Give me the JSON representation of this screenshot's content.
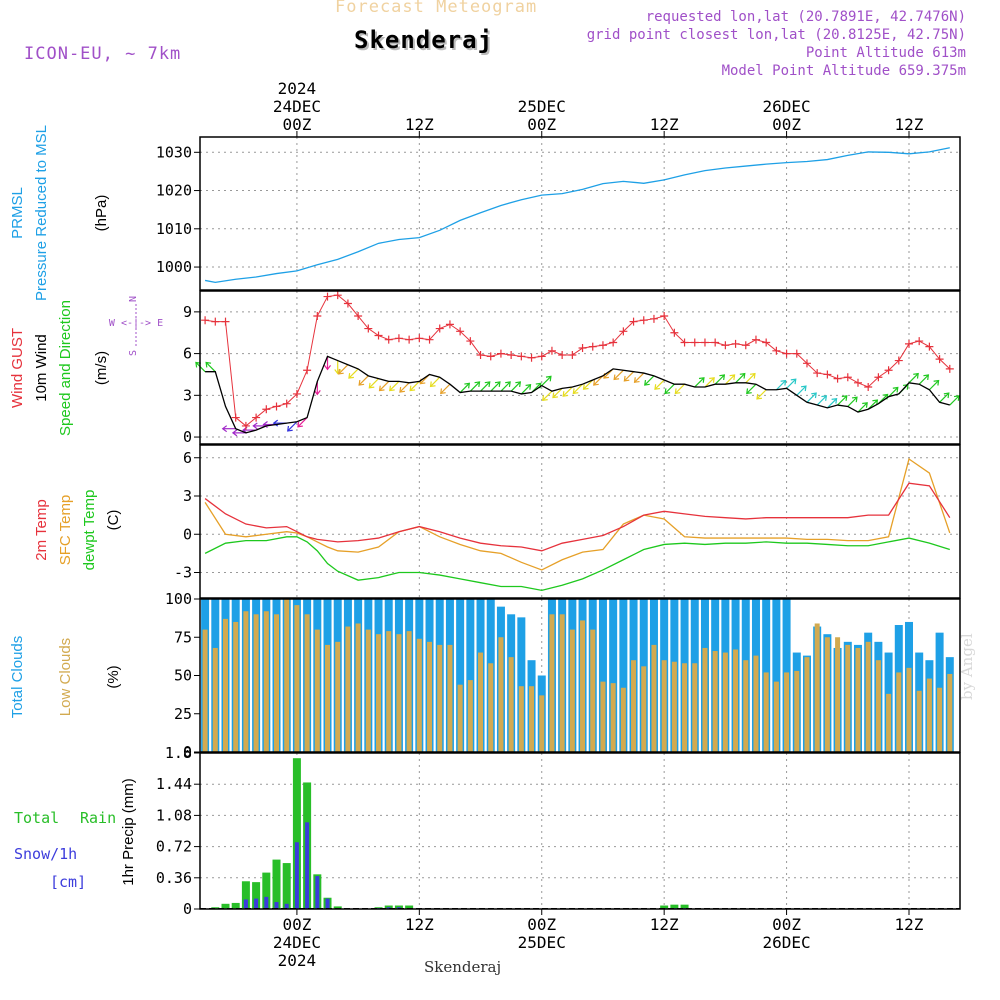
{
  "header": {
    "subtitle": "Forecast Meteogram",
    "station": "Skenderaj",
    "requested": "requested lon,lat (20.7891E, 42.7476N)",
    "grid_point": "grid point closest lon,lat (20.8125E, 42.75N)",
    "point_alt": "Point Altitude 613m",
    "model_alt": "Model Point Altitude 659.375m",
    "model": "ICON-EU, ~ 7km",
    "footer": "Skenderaj",
    "credit": "by Angel"
  },
  "time_axis": {
    "top_labels": [
      {
        "hour": 0,
        "lines": [
          "2024",
          "24DEC",
          "00Z"
        ]
      },
      {
        "hour": 12,
        "lines": [
          "12Z"
        ]
      },
      {
        "hour": 24,
        "lines": [
          "25DEC",
          "00Z"
        ]
      },
      {
        "hour": 36,
        "lines": [
          "12Z"
        ]
      },
      {
        "hour": 48,
        "lines": [
          "26DEC",
          "00Z"
        ]
      },
      {
        "hour": 60,
        "lines": [
          "12Z"
        ]
      }
    ],
    "bottom_labels": [
      {
        "hour": 0,
        "lines": [
          "00Z",
          "24DEC",
          "2024"
        ]
      },
      {
        "hour": 12,
        "lines": [
          "12Z"
        ]
      },
      {
        "hour": 24,
        "lines": [
          "00Z",
          "25DEC"
        ]
      },
      {
        "hour": 36,
        "lines": [
          "12Z"
        ]
      },
      {
        "hour": 48,
        "lines": [
          "00Z",
          "26DEC"
        ]
      },
      {
        "hour": 60,
        "lines": [
          "12Z"
        ]
      }
    ]
  },
  "panels": {
    "pressure": {
      "labels": [
        "PRMSL",
        "Pressure Reduced to MSL"
      ],
      "unit": "(hPa)",
      "yticks": [
        "1000",
        "1010",
        "1020",
        "1030"
      ]
    },
    "wind": {
      "labels": [
        "Wind GUST",
        "10m Wind",
        "Speed and Direction"
      ],
      "unit": "(m/s)",
      "yticks": [
        "0",
        "3",
        "6",
        "9"
      ],
      "compass": [
        "N",
        "W <-|-> E",
        "S"
      ]
    },
    "temp": {
      "labels": [
        "2m Temp",
        "SFC Temp",
        "dewpt Temp"
      ],
      "unit": "(C)",
      "yticks": [
        "-3",
        "0",
        "3",
        "6"
      ]
    },
    "clouds": {
      "labels": [
        "Total Clouds",
        "Low Clouds"
      ],
      "unit": "(%)",
      "yticks": [
        "0",
        "25",
        "50",
        "75",
        "100"
      ]
    },
    "precip": {
      "labels": [
        "Total",
        "Rain",
        "Snow/1h",
        "[cm]"
      ],
      "unit": "1hr Precip (mm)",
      "yticks": [
        "0",
        "0.36",
        "0.72",
        "1.08",
        "1.44",
        "1.8"
      ]
    }
  },
  "colors": {
    "pressure": "#1ea0e6",
    "gust": "#e6323c",
    "wind10m": "#000000",
    "t2m": "#e6323c",
    "tsfc": "#e6a028",
    "dewpt": "#1ec81e",
    "total_clouds": "#1ea0e6",
    "low_clouds": "#d2aa50",
    "rain": "#28be28",
    "snow": "#3c3cdc",
    "label_purple": "#a050c8"
  },
  "chart_data": {
    "type": "meteogram",
    "x_unit": "hours from 2024-12-24 00Z",
    "x_range": [
      -9.5,
      65
    ],
    "pressure": {
      "ylim": [
        994,
        1034
      ],
      "x": [
        -9,
        -8,
        -6,
        -4,
        -2,
        0,
        2,
        4,
        6,
        8,
        10,
        12,
        14,
        16,
        18,
        20,
        22,
        24,
        26,
        28,
        30,
        32,
        34,
        36,
        38,
        40,
        42,
        44,
        46,
        48,
        50,
        52,
        54,
        56,
        58,
        60,
        62,
        64
      ],
      "values": [
        996.5,
        996.0,
        996.8,
        997.4,
        998.3,
        999.0,
        1000.6,
        1002.0,
        1004.0,
        1006.2,
        1007.2,
        1007.7,
        1009.6,
        1012.2,
        1014.2,
        1016.1,
        1017.6,
        1018.8,
        1019.2,
        1020.3,
        1021.8,
        1022.4,
        1021.9,
        1022.8,
        1024.1,
        1025.2,
        1025.9,
        1026.4,
        1026.9,
        1027.3,
        1027.6,
        1028.1,
        1029.2,
        1030.1,
        1030.0,
        1029.6,
        1030.1,
        1031.2
      ]
    },
    "wind": {
      "ylim": [
        -0.5,
        10.5
      ],
      "gust_x": [
        -9,
        -8,
        -7,
        -6,
        -5,
        -4,
        -3,
        -2,
        -1,
        0,
        1,
        2,
        3,
        4,
        5,
        6,
        7,
        8,
        9,
        10,
        11,
        12,
        13,
        14,
        15,
        16,
        17,
        18,
        19,
        20,
        21,
        22,
        23,
        24,
        25,
        26,
        27,
        28,
        29,
        30,
        31,
        32,
        33,
        34,
        35,
        36,
        37,
        38,
        39,
        40,
        41,
        42,
        43,
        44,
        45,
        46,
        47,
        48,
        49,
        50,
        51,
        52,
        53,
        54,
        55,
        56,
        57,
        58,
        59,
        60,
        61,
        62,
        63,
        64
      ],
      "gust": [
        8.4,
        8.3,
        8.3,
        1.4,
        0.8,
        1.4,
        2.0,
        2.2,
        2.4,
        3.1,
        4.8,
        8.7,
        10.1,
        10.2,
        9.6,
        8.7,
        7.8,
        7.3,
        7.0,
        7.1,
        7.0,
        7.1,
        7.0,
        7.8,
        8.1,
        7.6,
        6.9,
        5.9,
        5.8,
        6.0,
        5.9,
        5.8,
        5.7,
        5.8,
        6.2,
        5.9,
        5.9,
        6.4,
        6.5,
        6.6,
        6.8,
        7.6,
        8.3,
        8.4,
        8.5,
        8.7,
        7.5,
        6.8,
        6.8,
        6.8,
        6.8,
        6.6,
        6.7,
        6.6,
        7.0,
        6.8,
        6.2,
        6.0,
        6.0,
        5.3,
        4.6,
        4.5,
        4.2,
        4.3,
        3.9,
        3.6,
        4.3,
        4.8,
        5.5,
        6.7,
        6.9,
        6.5,
        5.6,
        4.9
      ],
      "speed_x": [
        -9,
        -8,
        -7,
        -6,
        -5,
        -4,
        -3,
        -2,
        -1,
        0,
        1,
        2,
        3,
        4,
        5,
        6,
        7,
        8,
        9,
        10,
        11,
        12,
        13,
        14,
        15,
        16,
        17,
        18,
        19,
        20,
        21,
        22,
        23,
        24,
        25,
        26,
        27,
        28,
        29,
        30,
        31,
        32,
        33,
        34,
        35,
        36,
        37,
        38,
        39,
        40,
        41,
        42,
        43,
        44,
        45,
        46,
        47,
        48,
        49,
        50,
        51,
        52,
        53,
        54,
        55,
        56,
        57,
        58,
        59,
        60,
        61,
        62,
        63,
        64
      ],
      "speed": [
        4.7,
        4.7,
        2.2,
        0.6,
        0.3,
        0.5,
        0.8,
        0.9,
        1.0,
        1.1,
        1.4,
        4.0,
        5.8,
        5.5,
        5.2,
        4.9,
        4.4,
        4.2,
        4.0,
        4.0,
        3.9,
        4.0,
        4.5,
        4.3,
        3.8,
        3.2,
        3.3,
        3.3,
        3.3,
        3.3,
        3.3,
        3.1,
        3.2,
        3.7,
        3.3,
        3.5,
        3.6,
        3.8,
        4.1,
        4.4,
        4.9,
        4.8,
        4.7,
        4.6,
        4.4,
        4.1,
        3.8,
        3.8,
        3.6,
        3.6,
        3.8,
        3.8,
        3.9,
        3.9,
        3.8,
        3.4,
        3.4,
        3.5,
        3.0,
        2.5,
        2.3,
        2.1,
        2.3,
        2.2,
        1.8,
        2.0,
        2.4,
        2.9,
        3.1,
        3.9,
        3.8,
        3.4,
        2.5,
        2.3
      ],
      "barbs_x": [
        -9,
        -8,
        -6,
        -5,
        -4,
        -3,
        -2,
        -1,
        0,
        1,
        2,
        3,
        4,
        5,
        6,
        7,
        8,
        9,
        10,
        11,
        12,
        13,
        14,
        15,
        16,
        17,
        18,
        19,
        20,
        21,
        22,
        23,
        24,
        25,
        26,
        27,
        28,
        29,
        30,
        31,
        32,
        33,
        34,
        35,
        36,
        37,
        38,
        39,
        40,
        41,
        42,
        43,
        44,
        45,
        46,
        47,
        48,
        49,
        50,
        51,
        52,
        53,
        54,
        55,
        56,
        57,
        58,
        59,
        60,
        61,
        62,
        63,
        64
      ],
      "barbs_dir": [
        "NW",
        "NW",
        "W",
        "W",
        "W",
        "W",
        "W",
        "W",
        "SW",
        "SW",
        "S",
        "S",
        "S",
        "SW",
        "SW",
        "SW",
        "SW",
        "SW",
        "SW",
        "SW",
        "SW",
        "SW",
        "SW",
        "SW",
        "NE",
        "NE",
        "NE",
        "NE",
        "NE",
        "NE",
        "NE",
        "NE",
        "NE",
        "SW",
        "SW",
        "SW",
        "SW",
        "SW",
        "SW",
        "SW",
        "SW",
        "SW",
        "SW",
        "SW",
        "SW",
        "SW",
        "SW",
        "NE",
        "NE",
        "NE",
        "NE",
        "NE",
        "NE",
        "SW",
        "SW",
        "NE",
        "NE",
        "NE",
        "NE",
        "NE",
        "NE",
        "NE",
        "NE",
        "NE",
        "NE",
        "NE",
        "NE",
        "NE",
        "NE",
        "NE",
        "NE",
        "NE",
        "NE"
      ]
    },
    "temperature": {
      "ylim": [
        -5,
        7
      ],
      "x": [
        -9,
        -7,
        -5,
        -3,
        -1,
        0,
        1,
        2,
        3,
        4,
        6,
        8,
        10,
        12,
        14,
        16,
        18,
        20,
        22,
        24,
        26,
        28,
        30,
        32,
        34,
        36,
        38,
        40,
        42,
        44,
        46,
        48,
        50,
        52,
        54,
        56,
        58,
        60,
        62,
        64
      ],
      "t2m": [
        2.8,
        1.6,
        0.8,
        0.5,
        0.6,
        0.2,
        -0.2,
        -0.4,
        -0.5,
        -0.6,
        -0.5,
        -0.3,
        0.2,
        0.6,
        0.2,
        -0.3,
        -0.7,
        -0.9,
        -1.0,
        -1.3,
        -0.7,
        -0.4,
        -0.1,
        0.6,
        1.5,
        1.8,
        1.6,
        1.4,
        1.3,
        1.2,
        1.3,
        1.3,
        1.3,
        1.3,
        1.3,
        1.5,
        1.5,
        4.0,
        3.8,
        1.3
      ],
      "tsfc": [
        2.5,
        0.0,
        -0.2,
        0.0,
        0.2,
        0.1,
        -0.2,
        -0.6,
        -1.0,
        -1.3,
        -1.4,
        -1.0,
        0.2,
        0.6,
        -0.2,
        -0.8,
        -1.3,
        -1.5,
        -2.2,
        -2.8,
        -2.0,
        -1.4,
        -1.2,
        0.8,
        1.5,
        1.2,
        -0.2,
        -0.3,
        -0.3,
        -0.3,
        -0.3,
        -0.3,
        -0.4,
        -0.4,
        -0.5,
        -0.5,
        -0.2,
        5.9,
        4.8,
        0.1
      ],
      "dewpt": [
        -1.5,
        -0.7,
        -0.5,
        -0.5,
        -0.2,
        -0.2,
        -0.6,
        -1.3,
        -2.3,
        -2.9,
        -3.6,
        -3.4,
        -3.0,
        -3.0,
        -3.2,
        -3.5,
        -3.8,
        -4.1,
        -4.1,
        -4.4,
        -4.0,
        -3.5,
        -2.8,
        -2.0,
        -1.2,
        -0.8,
        -0.7,
        -0.8,
        -0.7,
        -0.7,
        -0.6,
        -0.7,
        -0.7,
        -0.8,
        -0.9,
        -0.9,
        -0.6,
        -0.3,
        -0.7,
        -1.2
      ]
    },
    "clouds": {
      "ylim": [
        0,
        100
      ],
      "x": [
        -9,
        -8,
        -7,
        -6,
        -5,
        -4,
        -3,
        -2,
        -1,
        0,
        1,
        2,
        3,
        4,
        5,
        6,
        7,
        8,
        9,
        10,
        11,
        12,
        13,
        14,
        15,
        16,
        17,
        18,
        19,
        20,
        21,
        22,
        23,
        24,
        25,
        26,
        27,
        28,
        29,
        30,
        31,
        32,
        33,
        34,
        35,
        36,
        37,
        38,
        39,
        40,
        41,
        42,
        43,
        44,
        45,
        46,
        47,
        48,
        49,
        50,
        51,
        52,
        53,
        54,
        55,
        56,
        57,
        58,
        59,
        60,
        61,
        62,
        63,
        64
      ],
      "total": [
        100,
        100,
        100,
        100,
        100,
        100,
        100,
        100,
        100,
        100,
        100,
        100,
        100,
        100,
        100,
        100,
        100,
        100,
        100,
        100,
        100,
        100,
        100,
        100,
        100,
        100,
        100,
        100,
        100,
        95,
        90,
        88,
        60,
        50,
        100,
        100,
        100,
        100,
        100,
        100,
        100,
        100,
        100,
        100,
        100,
        100,
        100,
        100,
        100,
        100,
        100,
        100,
        100,
        100,
        100,
        100,
        100,
        100,
        65,
        63,
        82,
        77,
        68,
        72,
        70,
        78,
        72,
        65,
        83,
        85,
        65,
        60,
        78,
        62
      ],
      "low": [
        80,
        68,
        87,
        85,
        92,
        90,
        92,
        90,
        100,
        96,
        90,
        80,
        70,
        72,
        82,
        84,
        80,
        77,
        79,
        77,
        79,
        74,
        72,
        70,
        70,
        44,
        47,
        65,
        58,
        75,
        62,
        43,
        43,
        37,
        90,
        90,
        80,
        86,
        80,
        46,
        45,
        42,
        60,
        56,
        70,
        60,
        59,
        58,
        58,
        68,
        66,
        65,
        67,
        60,
        63,
        52,
        46,
        52,
        53,
        62,
        84,
        75,
        75,
        70,
        68,
        72,
        60,
        38,
        52,
        55,
        40,
        48,
        42,
        51
      ]
    },
    "precip": {
      "ylim": [
        0,
        1.8
      ],
      "x": [
        -8,
        -7,
        -6,
        -5,
        -4,
        -3,
        -2,
        -1,
        0,
        1,
        2,
        3,
        4,
        8,
        9,
        10,
        11,
        36,
        37,
        38
      ],
      "total": [
        0.02,
        0.06,
        0.07,
        0.32,
        0.31,
        0.42,
        0.57,
        0.53,
        1.74,
        1.46,
        0.4,
        0.13,
        0.03,
        0.02,
        0.04,
        0.04,
        0.04,
        0.04,
        0.05,
        0.05
      ],
      "rain": [
        0.02,
        0.06,
        0.07,
        0.32,
        0.31,
        0.42,
        0.57,
        0.53,
        1.74,
        1.46,
        0.4,
        0.13,
        0.03,
        0.02,
        0.04,
        0.04,
        0.04,
        0.04,
        0.05,
        0.05
      ],
      "snow": [
        0.0,
        0.0,
        0.0,
        0.11,
        0.12,
        0.14,
        0.08,
        0.06,
        0.77,
        1.0,
        0.38,
        0.12,
        0.01,
        0.01,
        0.02,
        0.02,
        0.01,
        0.01,
        0.01,
        0.01
      ]
    }
  }
}
